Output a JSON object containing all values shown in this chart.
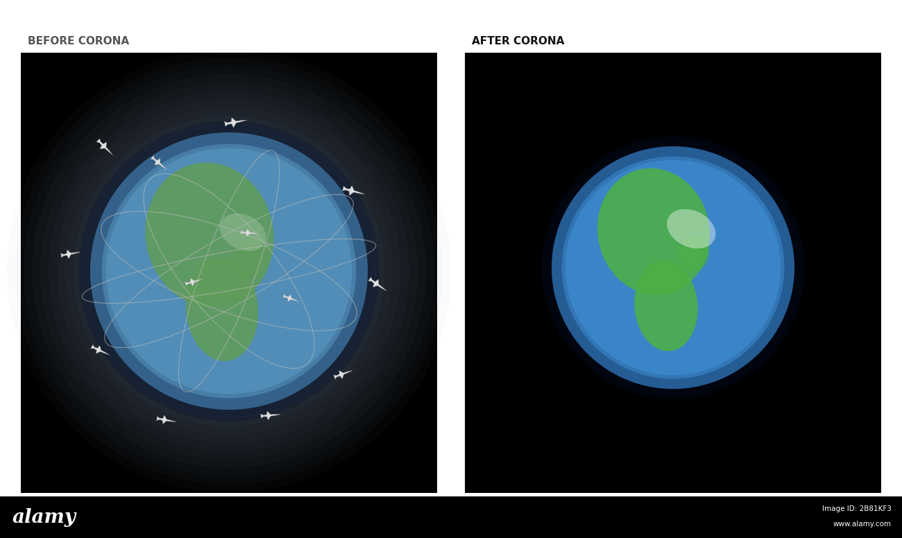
{
  "title_left": "BEFORE CORONA",
  "title_right": "AFTER CORONA",
  "title_color": "#555555",
  "title_fontsize": 11,
  "bg_color": "#ffffff",
  "panel_bg": "#000000",
  "bottom_bar_color": "#000000",
  "alamy_text": "alamy",
  "image_id_text": "Image ID: 2B81KF3",
  "website_text": "www.alamy.com",
  "ocean_color_before": "#4a8ab5",
  "ocean_color_after": "#3a85c8",
  "land_color_before": "#5a9a50",
  "land_color_after": "#4db045",
  "orbit_color": "#bbbbbb",
  "orbit_alpha": 0.55,
  "airplane_color": "#e0e0e0"
}
